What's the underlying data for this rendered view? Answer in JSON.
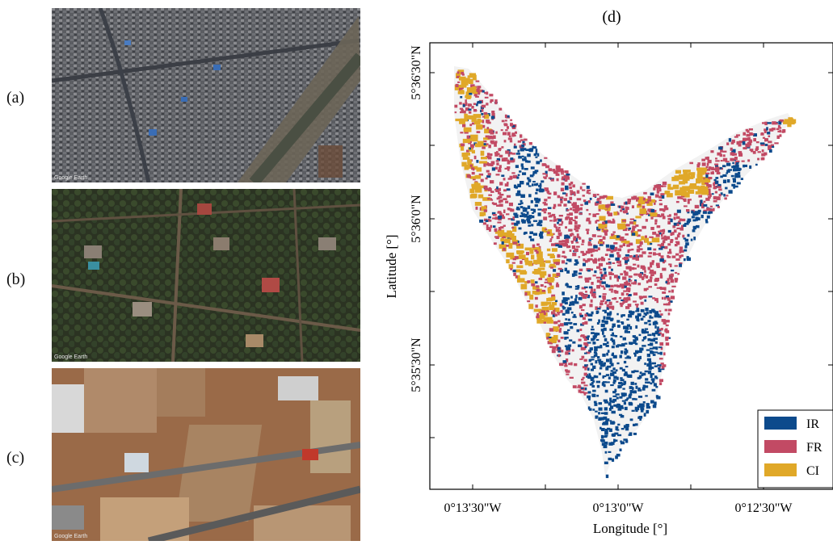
{
  "panels": {
    "a": {
      "label": "(a)",
      "watermark": "Google Earth"
    },
    "b": {
      "label": "(b)",
      "watermark": "Google Earth"
    },
    "c": {
      "label": "(c)",
      "watermark": "Google Earth"
    },
    "d": {
      "label": "(d)"
    }
  },
  "map": {
    "xlabel": "Longitude [°]",
    "ylabel": "Latitude [°]",
    "xticks": [
      "0°13'30\"W",
      "0°13'0\"W",
      "0°12'30\"W"
    ],
    "yticks": [
      "5°36'30\"N",
      "5°36'0\"N",
      "5°35'30\"N"
    ],
    "legend": [
      {
        "name": "IR",
        "color": "#0c4a8c"
      },
      {
        "name": "FR",
        "color": "#c24a64"
      },
      {
        "name": "CI",
        "color": "#e0a828"
      }
    ]
  }
}
